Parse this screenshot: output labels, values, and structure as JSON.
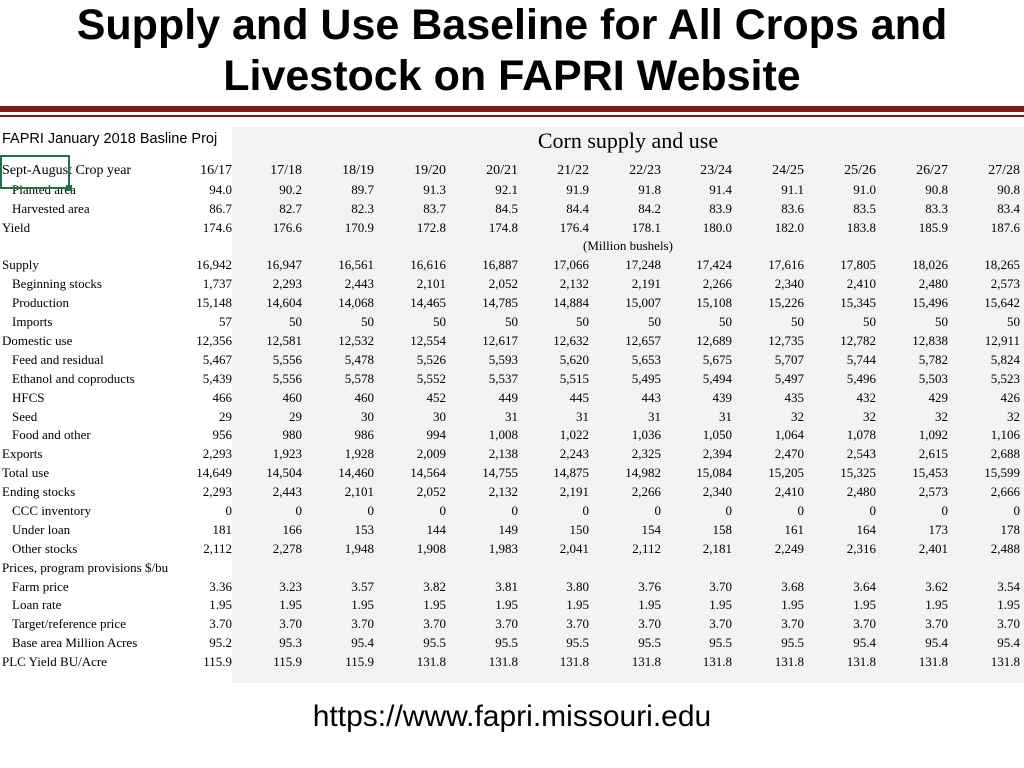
{
  "slide": {
    "title_line1": "Supply and Use Baseline for All Crops and",
    "title_line2": "Livestock on FAPRI Website",
    "url": "https://www.fapri.missouri.edu"
  },
  "sheet": {
    "left_header": "FAPRI January 2018 Basline Proj",
    "table_title": "Corn supply and use",
    "unit_label": "(Million bushels)",
    "row_header_label": "Sept-August Crop year",
    "columns": [
      "16/17",
      "17/18",
      "18/19",
      "19/20",
      "20/21",
      "21/22",
      "22/23",
      "23/24",
      "24/25",
      "25/26",
      "26/27",
      "27/28"
    ],
    "rows": [
      {
        "label": "Planted area",
        "indent": true,
        "values": [
          "94.0",
          "90.2",
          "89.7",
          "91.3",
          "92.1",
          "91.9",
          "91.8",
          "91.4",
          "91.1",
          "91.0",
          "90.8",
          "90.8"
        ]
      },
      {
        "label": "Harvested area",
        "indent": true,
        "values": [
          "86.7",
          "82.7",
          "82.3",
          "83.7",
          "84.5",
          "84.4",
          "84.2",
          "83.9",
          "83.6",
          "83.5",
          "83.3",
          "83.4"
        ]
      },
      {
        "label": "Yield",
        "indent": false,
        "values": [
          "174.6",
          "176.6",
          "170.9",
          "172.8",
          "174.8",
          "176.4",
          "178.1",
          "180.0",
          "182.0",
          "183.8",
          "185.9",
          "187.6"
        ]
      },
      {
        "label": "",
        "indent": false,
        "values": [
          "",
          "",
          "",
          "",
          "",
          "",
          "",
          "",
          "",
          "",
          "",
          ""
        ]
      },
      {
        "label": "Supply",
        "indent": false,
        "values": [
          "16,942",
          "16,947",
          "16,561",
          "16,616",
          "16,887",
          "17,066",
          "17,248",
          "17,424",
          "17,616",
          "17,805",
          "18,026",
          "18,265"
        ]
      },
      {
        "label": "Beginning stocks",
        "indent": true,
        "values": [
          "1,737",
          "2,293",
          "2,443",
          "2,101",
          "2,052",
          "2,132",
          "2,191",
          "2,266",
          "2,340",
          "2,410",
          "2,480",
          "2,573"
        ]
      },
      {
        "label": "Production",
        "indent": true,
        "values": [
          "15,148",
          "14,604",
          "14,068",
          "14,465",
          "14,785",
          "14,884",
          "15,007",
          "15,108",
          "15,226",
          "15,345",
          "15,496",
          "15,642"
        ]
      },
      {
        "label": "Imports",
        "indent": true,
        "values": [
          "57",
          "50",
          "50",
          "50",
          "50",
          "50",
          "50",
          "50",
          "50",
          "50",
          "50",
          "50"
        ]
      },
      {
        "label": "Domestic use",
        "indent": false,
        "values": [
          "12,356",
          "12,581",
          "12,532",
          "12,554",
          "12,617",
          "12,632",
          "12,657",
          "12,689",
          "12,735",
          "12,782",
          "12,838",
          "12,911"
        ]
      },
      {
        "label": "Feed and residual",
        "indent": true,
        "values": [
          "5,467",
          "5,556",
          "5,478",
          "5,526",
          "5,593",
          "5,620",
          "5,653",
          "5,675",
          "5,707",
          "5,744",
          "5,782",
          "5,824"
        ]
      },
      {
        "label": "Ethanol and coproducts",
        "indent": true,
        "values": [
          "5,439",
          "5,556",
          "5,578",
          "5,552",
          "5,537",
          "5,515",
          "5,495",
          "5,494",
          "5,497",
          "5,496",
          "5,503",
          "5,523"
        ]
      },
      {
        "label": "HFCS",
        "indent": true,
        "values": [
          "466",
          "460",
          "460",
          "452",
          "449",
          "445",
          "443",
          "439",
          "435",
          "432",
          "429",
          "426"
        ]
      },
      {
        "label": "Seed",
        "indent": true,
        "values": [
          "29",
          "29",
          "30",
          "30",
          "31",
          "31",
          "31",
          "31",
          "32",
          "32",
          "32",
          "32"
        ]
      },
      {
        "label": "Food and other",
        "indent": true,
        "values": [
          "956",
          "980",
          "986",
          "994",
          "1,008",
          "1,022",
          "1,036",
          "1,050",
          "1,064",
          "1,078",
          "1,092",
          "1,106"
        ]
      },
      {
        "label": "Exports",
        "indent": false,
        "values": [
          "2,293",
          "1,923",
          "1,928",
          "2,009",
          "2,138",
          "2,243",
          "2,325",
          "2,394",
          "2,470",
          "2,543",
          "2,615",
          "2,688"
        ]
      },
      {
        "label": "Total use",
        "indent": false,
        "values": [
          "14,649",
          "14,504",
          "14,460",
          "14,564",
          "14,755",
          "14,875",
          "14,982",
          "15,084",
          "15,205",
          "15,325",
          "15,453",
          "15,599"
        ]
      },
      {
        "label": "Ending stocks",
        "indent": false,
        "values": [
          "2,293",
          "2,443",
          "2,101",
          "2,052",
          "2,132",
          "2,191",
          "2,266",
          "2,340",
          "2,410",
          "2,480",
          "2,573",
          "2,666"
        ]
      },
      {
        "label": "CCC inventory",
        "indent": true,
        "values": [
          "0",
          "0",
          "0",
          "0",
          "0",
          "0",
          "0",
          "0",
          "0",
          "0",
          "0",
          "0"
        ]
      },
      {
        "label": "Under loan",
        "indent": true,
        "values": [
          "181",
          "166",
          "153",
          "144",
          "149",
          "150",
          "154",
          "158",
          "161",
          "164",
          "173",
          "178"
        ]
      },
      {
        "label": "Other stocks",
        "indent": true,
        "values": [
          "2,112",
          "2,278",
          "1,948",
          "1,908",
          "1,983",
          "2,041",
          "2,112",
          "2,181",
          "2,249",
          "2,316",
          "2,401",
          "2,488"
        ]
      },
      {
        "label": "Prices, program provisions $/bu",
        "indent": false,
        "values": [
          "",
          "",
          "",
          "",
          "",
          "",
          "",
          "",
          "",
          "",
          "",
          ""
        ]
      },
      {
        "label": "Farm price",
        "indent": true,
        "values": [
          "3.36",
          "3.23",
          "3.57",
          "3.82",
          "3.81",
          "3.80",
          "3.76",
          "3.70",
          "3.68",
          "3.64",
          "3.62",
          "3.54"
        ]
      },
      {
        "label": "Loan rate",
        "indent": true,
        "values": [
          "1.95",
          "1.95",
          "1.95",
          "1.95",
          "1.95",
          "1.95",
          "1.95",
          "1.95",
          "1.95",
          "1.95",
          "1.95",
          "1.95"
        ]
      },
      {
        "label": "Target/reference price",
        "indent": true,
        "values": [
          "3.70",
          "3.70",
          "3.70",
          "3.70",
          "3.70",
          "3.70",
          "3.70",
          "3.70",
          "3.70",
          "3.70",
          "3.70",
          "3.70"
        ]
      },
      {
        "label": "Base area Million Acres",
        "indent": true,
        "values": [
          "95.2",
          "95.3",
          "95.4",
          "95.5",
          "95.5",
          "95.5",
          "95.5",
          "95.5",
          "95.5",
          "95.4",
          "95.4",
          "95.4"
        ]
      },
      {
        "label": "PLC Yield BU/Acre",
        "indent": false,
        "values": [
          "115.9",
          "115.9",
          "115.9",
          "131.8",
          "131.8",
          "131.8",
          "131.8",
          "131.8",
          "131.8",
          "131.8",
          "131.8",
          "131.8"
        ]
      }
    ]
  }
}
